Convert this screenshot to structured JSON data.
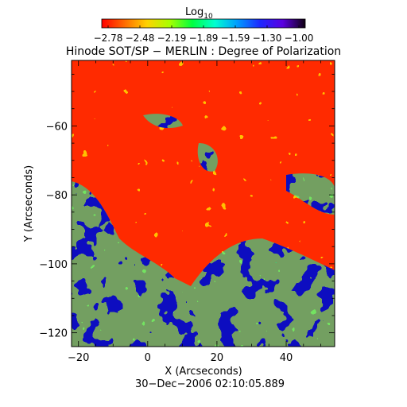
{
  "colorbar": {
    "label_base": "Log",
    "label_sub": "10",
    "tick_labels": [
      "−2.78",
      "−2.48",
      "−2.19",
      "−1.89",
      "−1.59",
      "−1.30",
      "−1.00"
    ],
    "stops": [
      "#ff0000",
      "#ff6a00",
      "#ffd200",
      "#a8ff00",
      "#00ff40",
      "#00ffd0",
      "#009cff",
      "#1e28ff",
      "#5a00e0",
      "#100010"
    ]
  },
  "map": {
    "title": "Hinode SOT/SP − MERLIN : Degree of Polarization",
    "xlabel": "X (Arcseconds)",
    "ylabel": "Y (Arcseconds)",
    "xlim": [
      -22,
      54
    ],
    "ylim": [
      -124,
      -41
    ],
    "xticks": [
      -20,
      0,
      20,
      40
    ],
    "yticks": [
      -60,
      -80,
      -100,
      -120
    ],
    "xtick_labels": [
      "−20",
      "0",
      "20",
      "40"
    ],
    "ytick_labels": [
      "−60",
      "−80",
      "−100",
      "−120"
    ],
    "timestamp": "30−Dec−2006 02:10:05.889",
    "background_color": "#ff2a00"
  }
}
